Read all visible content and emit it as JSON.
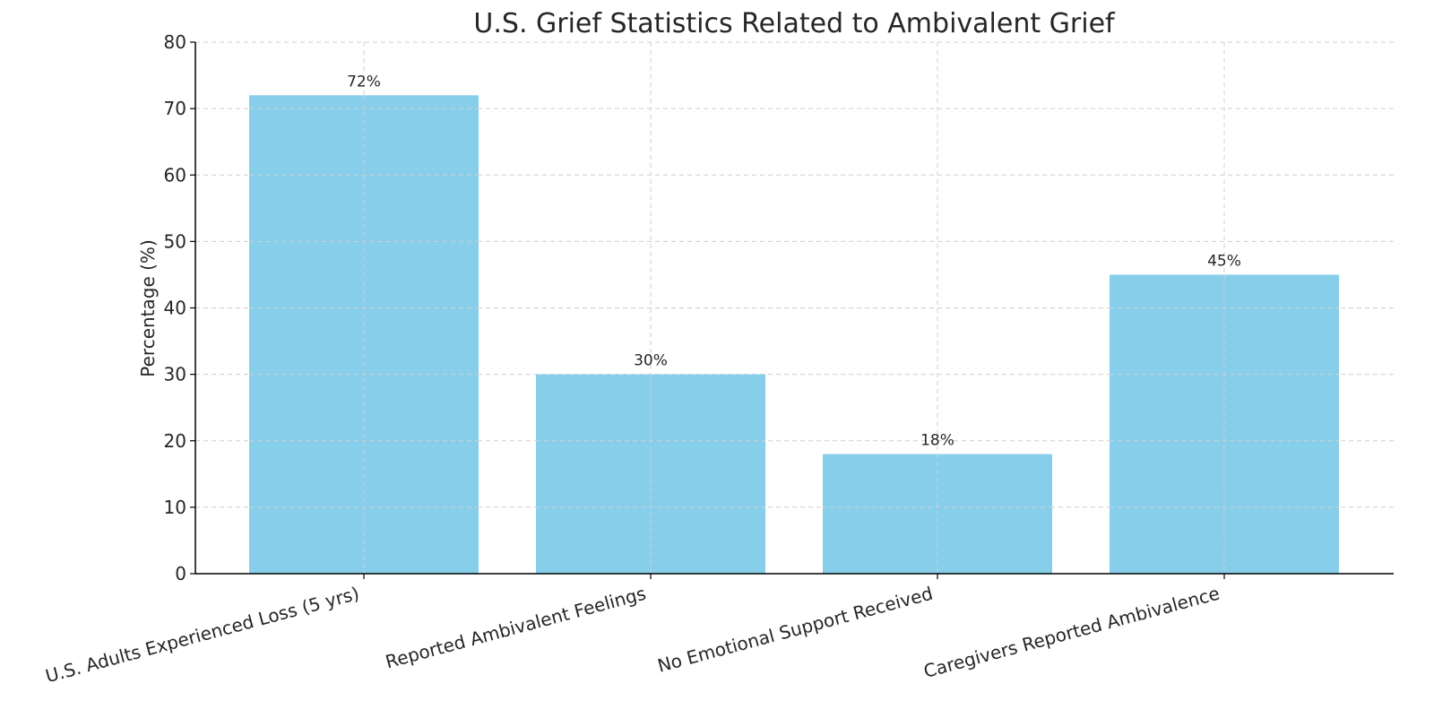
{
  "chart_data": {
    "type": "bar",
    "title": "U.S. Grief Statistics Related to Ambivalent Grief",
    "xlabel": "",
    "ylabel": "Percentage (%)",
    "categories": [
      "U.S. Adults Experienced Loss (5 yrs)",
      "Reported Ambivalent Feelings",
      "No Emotional Support Received",
      "Caregivers Reported Ambivalence"
    ],
    "values": [
      72,
      30,
      18,
      45
    ],
    "value_labels": [
      "72%",
      "30%",
      "18%",
      "45%"
    ],
    "ylim": [
      0,
      80
    ],
    "yticks": [
      0,
      10,
      20,
      30,
      40,
      50,
      60,
      70,
      80
    ],
    "grid": true,
    "bar_color": "#87CEEB"
  }
}
